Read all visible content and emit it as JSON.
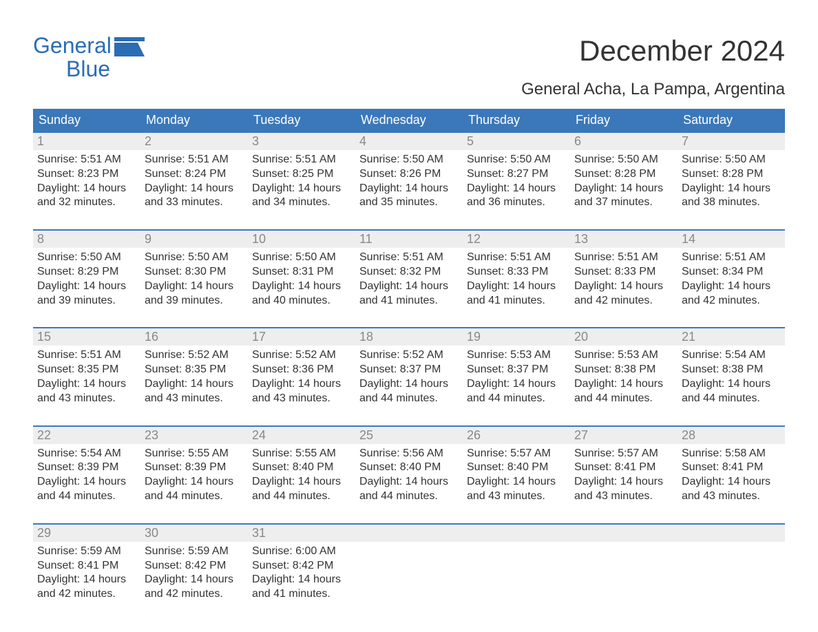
{
  "logo": {
    "line1": "General",
    "line2": "Blue",
    "text_color": "#2a6db5",
    "icon_color": "#2a6db5"
  },
  "title": "December 2024",
  "location": "General Acha, La Pampa, Argentina",
  "colors": {
    "header_bg": "#3b78b9",
    "header_text": "#ffffff",
    "week_border": "#3b78b9",
    "daynum_bg": "#eeeeee",
    "daynum_text": "#888888",
    "body_text": "#333333",
    "background": "#ffffff"
  },
  "typography": {
    "month_title_fontsize": 42,
    "location_fontsize": 24,
    "weekday_fontsize": 18,
    "daynum_fontsize": 18,
    "cell_fontsize": 16,
    "logo_fontsize": 32
  },
  "weekdays": [
    "Sunday",
    "Monday",
    "Tuesday",
    "Wednesday",
    "Thursday",
    "Friday",
    "Saturday"
  ],
  "labels": {
    "sunrise": "Sunrise:",
    "sunset": "Sunset:",
    "daylight": "Daylight:",
    "hours": "hours",
    "and": "and",
    "minutes": "minutes."
  },
  "weeks": [
    [
      {
        "day": "1",
        "sunrise": "5:51 AM",
        "sunset": "8:23 PM",
        "daylight_h": 14,
        "daylight_m": 32
      },
      {
        "day": "2",
        "sunrise": "5:51 AM",
        "sunset": "8:24 PM",
        "daylight_h": 14,
        "daylight_m": 33
      },
      {
        "day": "3",
        "sunrise": "5:51 AM",
        "sunset": "8:25 PM",
        "daylight_h": 14,
        "daylight_m": 34
      },
      {
        "day": "4",
        "sunrise": "5:50 AM",
        "sunset": "8:26 PM",
        "daylight_h": 14,
        "daylight_m": 35
      },
      {
        "day": "5",
        "sunrise": "5:50 AM",
        "sunset": "8:27 PM",
        "daylight_h": 14,
        "daylight_m": 36
      },
      {
        "day": "6",
        "sunrise": "5:50 AM",
        "sunset": "8:28 PM",
        "daylight_h": 14,
        "daylight_m": 37
      },
      {
        "day": "7",
        "sunrise": "5:50 AM",
        "sunset": "8:28 PM",
        "daylight_h": 14,
        "daylight_m": 38
      }
    ],
    [
      {
        "day": "8",
        "sunrise": "5:50 AM",
        "sunset": "8:29 PM",
        "daylight_h": 14,
        "daylight_m": 39
      },
      {
        "day": "9",
        "sunrise": "5:50 AM",
        "sunset": "8:30 PM",
        "daylight_h": 14,
        "daylight_m": 39
      },
      {
        "day": "10",
        "sunrise": "5:50 AM",
        "sunset": "8:31 PM",
        "daylight_h": 14,
        "daylight_m": 40
      },
      {
        "day": "11",
        "sunrise": "5:51 AM",
        "sunset": "8:32 PM",
        "daylight_h": 14,
        "daylight_m": 41
      },
      {
        "day": "12",
        "sunrise": "5:51 AM",
        "sunset": "8:33 PM",
        "daylight_h": 14,
        "daylight_m": 41
      },
      {
        "day": "13",
        "sunrise": "5:51 AM",
        "sunset": "8:33 PM",
        "daylight_h": 14,
        "daylight_m": 42
      },
      {
        "day": "14",
        "sunrise": "5:51 AM",
        "sunset": "8:34 PM",
        "daylight_h": 14,
        "daylight_m": 42
      }
    ],
    [
      {
        "day": "15",
        "sunrise": "5:51 AM",
        "sunset": "8:35 PM",
        "daylight_h": 14,
        "daylight_m": 43
      },
      {
        "day": "16",
        "sunrise": "5:52 AM",
        "sunset": "8:35 PM",
        "daylight_h": 14,
        "daylight_m": 43
      },
      {
        "day": "17",
        "sunrise": "5:52 AM",
        "sunset": "8:36 PM",
        "daylight_h": 14,
        "daylight_m": 43
      },
      {
        "day": "18",
        "sunrise": "5:52 AM",
        "sunset": "8:37 PM",
        "daylight_h": 14,
        "daylight_m": 44
      },
      {
        "day": "19",
        "sunrise": "5:53 AM",
        "sunset": "8:37 PM",
        "daylight_h": 14,
        "daylight_m": 44
      },
      {
        "day": "20",
        "sunrise": "5:53 AM",
        "sunset": "8:38 PM",
        "daylight_h": 14,
        "daylight_m": 44
      },
      {
        "day": "21",
        "sunrise": "5:54 AM",
        "sunset": "8:38 PM",
        "daylight_h": 14,
        "daylight_m": 44
      }
    ],
    [
      {
        "day": "22",
        "sunrise": "5:54 AM",
        "sunset": "8:39 PM",
        "daylight_h": 14,
        "daylight_m": 44
      },
      {
        "day": "23",
        "sunrise": "5:55 AM",
        "sunset": "8:39 PM",
        "daylight_h": 14,
        "daylight_m": 44
      },
      {
        "day": "24",
        "sunrise": "5:55 AM",
        "sunset": "8:40 PM",
        "daylight_h": 14,
        "daylight_m": 44
      },
      {
        "day": "25",
        "sunrise": "5:56 AM",
        "sunset": "8:40 PM",
        "daylight_h": 14,
        "daylight_m": 44
      },
      {
        "day": "26",
        "sunrise": "5:57 AM",
        "sunset": "8:40 PM",
        "daylight_h": 14,
        "daylight_m": 43
      },
      {
        "day": "27",
        "sunrise": "5:57 AM",
        "sunset": "8:41 PM",
        "daylight_h": 14,
        "daylight_m": 43
      },
      {
        "day": "28",
        "sunrise": "5:58 AM",
        "sunset": "8:41 PM",
        "daylight_h": 14,
        "daylight_m": 43
      }
    ],
    [
      {
        "day": "29",
        "sunrise": "5:59 AM",
        "sunset": "8:41 PM",
        "daylight_h": 14,
        "daylight_m": 42
      },
      {
        "day": "30",
        "sunrise": "5:59 AM",
        "sunset": "8:42 PM",
        "daylight_h": 14,
        "daylight_m": 42
      },
      {
        "day": "31",
        "sunrise": "6:00 AM",
        "sunset": "8:42 PM",
        "daylight_h": 14,
        "daylight_m": 41
      },
      null,
      null,
      null,
      null
    ]
  ]
}
